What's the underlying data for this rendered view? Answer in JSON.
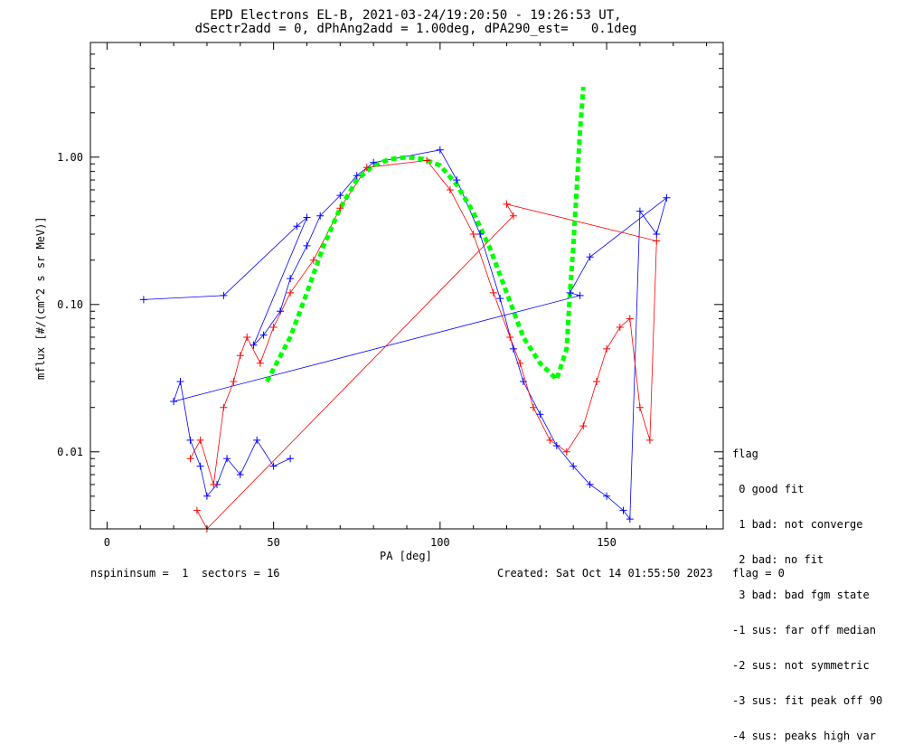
{
  "chart_data": {
    "type": "scatter",
    "title": "EPD Electrons EL-B, 2021-03-24/19:20:50 - 19:26:53 UT,",
    "subtitle": "dSectr2add = 0, dPhAng2add = 1.00deg, dPA290_est=   0.1deg",
    "xlabel": "PA [deg]",
    "ylabel": "mflux [#/(cm^2 s sr MeV)]",
    "xlim": [
      -5,
      185
    ],
    "ylim": [
      0.003,
      6
    ],
    "yscale": "log",
    "grid": false,
    "x_ticks": [
      {
        "value": 0,
        "label": "0"
      },
      {
        "value": 50,
        "label": "50"
      },
      {
        "value": 100,
        "label": "100"
      },
      {
        "value": 150,
        "label": "150"
      }
    ],
    "y_ticks": [
      {
        "value": 0.01,
        "label": "0.01"
      },
      {
        "value": 0.1,
        "label": "0.10"
      },
      {
        "value": 1.0,
        "label": "1.00"
      }
    ],
    "series": [
      {
        "color": "#0000ff",
        "style": "plus-line",
        "points": [
          [
            11,
            0.108
          ],
          [
            35,
            0.115
          ],
          [
            57,
            0.34
          ],
          [
            60,
            0.39
          ],
          [
            44,
            0.053
          ],
          [
            47,
            0.062
          ],
          [
            52,
            0.09
          ],
          [
            55,
            0.15
          ],
          [
            60,
            0.25
          ],
          [
            64,
            0.4
          ],
          [
            70,
            0.55
          ],
          [
            75,
            0.75
          ],
          [
            80,
            0.92
          ],
          [
            100,
            1.12
          ],
          [
            105,
            0.7
          ],
          [
            112,
            0.3
          ],
          [
            118,
            0.11
          ],
          [
            122,
            0.05
          ],
          [
            125,
            0.03
          ],
          [
            130,
            0.018
          ],
          [
            135,
            0.011
          ],
          [
            140,
            0.008
          ],
          [
            145,
            0.006
          ],
          [
            150,
            0.005
          ],
          [
            155,
            0.004
          ],
          [
            157,
            0.0035
          ],
          [
            160,
            0.43
          ],
          [
            165,
            0.3
          ],
          [
            168,
            0.53
          ],
          [
            145,
            0.21
          ],
          [
            139,
            0.12
          ],
          [
            142,
            0.115
          ],
          [
            20,
            0.022
          ],
          [
            22,
            0.03
          ],
          [
            25,
            0.012
          ],
          [
            28,
            0.008
          ],
          [
            30,
            0.005
          ],
          [
            33,
            0.006
          ],
          [
            36,
            0.009
          ],
          [
            40,
            0.007
          ],
          [
            45,
            0.012
          ],
          [
            50,
            0.008
          ],
          [
            55,
            0.009
          ]
        ]
      },
      {
        "color": "#ff0000",
        "style": "plus-line",
        "points": [
          [
            25,
            0.009
          ],
          [
            28,
            0.012
          ],
          [
            32,
            0.006
          ],
          [
            35,
            0.02
          ],
          [
            38,
            0.03
          ],
          [
            40,
            0.045
          ],
          [
            42,
            0.06
          ],
          [
            46,
            0.04
          ],
          [
            50,
            0.07
          ],
          [
            55,
            0.12
          ],
          [
            62,
            0.2
          ],
          [
            70,
            0.45
          ],
          [
            78,
            0.85
          ],
          [
            96,
            0.95
          ],
          [
            103,
            0.6
          ],
          [
            110,
            0.3
          ],
          [
            116,
            0.12
          ],
          [
            121,
            0.06
          ],
          [
            124,
            0.04
          ],
          [
            128,
            0.02
          ],
          [
            133,
            0.012
          ],
          [
            138,
            0.01
          ],
          [
            143,
            0.015
          ],
          [
            147,
            0.03
          ],
          [
            150,
            0.05
          ],
          [
            154,
            0.07
          ],
          [
            157,
            0.08
          ],
          [
            160,
            0.02
          ],
          [
            163,
            0.012
          ],
          [
            165,
            0.27
          ],
          [
            120,
            0.48
          ],
          [
            122,
            0.4
          ],
          [
            30,
            0.003
          ],
          [
            27,
            0.004
          ]
        ]
      },
      {
        "color": "#00ff00",
        "style": "dashed-line",
        "points": [
          [
            48,
            0.03
          ],
          [
            55,
            0.06
          ],
          [
            60,
            0.12
          ],
          [
            65,
            0.25
          ],
          [
            70,
            0.45
          ],
          [
            75,
            0.7
          ],
          [
            80,
            0.88
          ],
          [
            85,
            0.97
          ],
          [
            90,
            1.0
          ],
          [
            95,
            0.97
          ],
          [
            100,
            0.88
          ],
          [
            105,
            0.65
          ],
          [
            110,
            0.42
          ],
          [
            115,
            0.24
          ],
          [
            120,
            0.12
          ],
          [
            125,
            0.06
          ],
          [
            130,
            0.04
          ],
          [
            135,
            0.031
          ],
          [
            138,
            0.05
          ],
          [
            139,
            0.12
          ],
          [
            140,
            0.25
          ],
          [
            141,
            0.6
          ],
          [
            142,
            1.5
          ],
          [
            143,
            3.0
          ]
        ]
      }
    ],
    "legend": {
      "placement": "right-bottom",
      "title": "flag",
      "entries": [
        " 0 good fit",
        " 1 bad: not converge",
        " 2 bad: no fit",
        " 3 bad: bad fgm state",
        "-1 sus: far off median",
        "-2 sus: not symmetric",
        "-3 sus: fit peak off 90",
        "-4 sus: peaks high var"
      ]
    }
  },
  "footer": {
    "left": "nspininsum =  1  sectors = 16",
    "right": "Created: Sat Oct 14 01:55:50 2023   flag = 0"
  }
}
